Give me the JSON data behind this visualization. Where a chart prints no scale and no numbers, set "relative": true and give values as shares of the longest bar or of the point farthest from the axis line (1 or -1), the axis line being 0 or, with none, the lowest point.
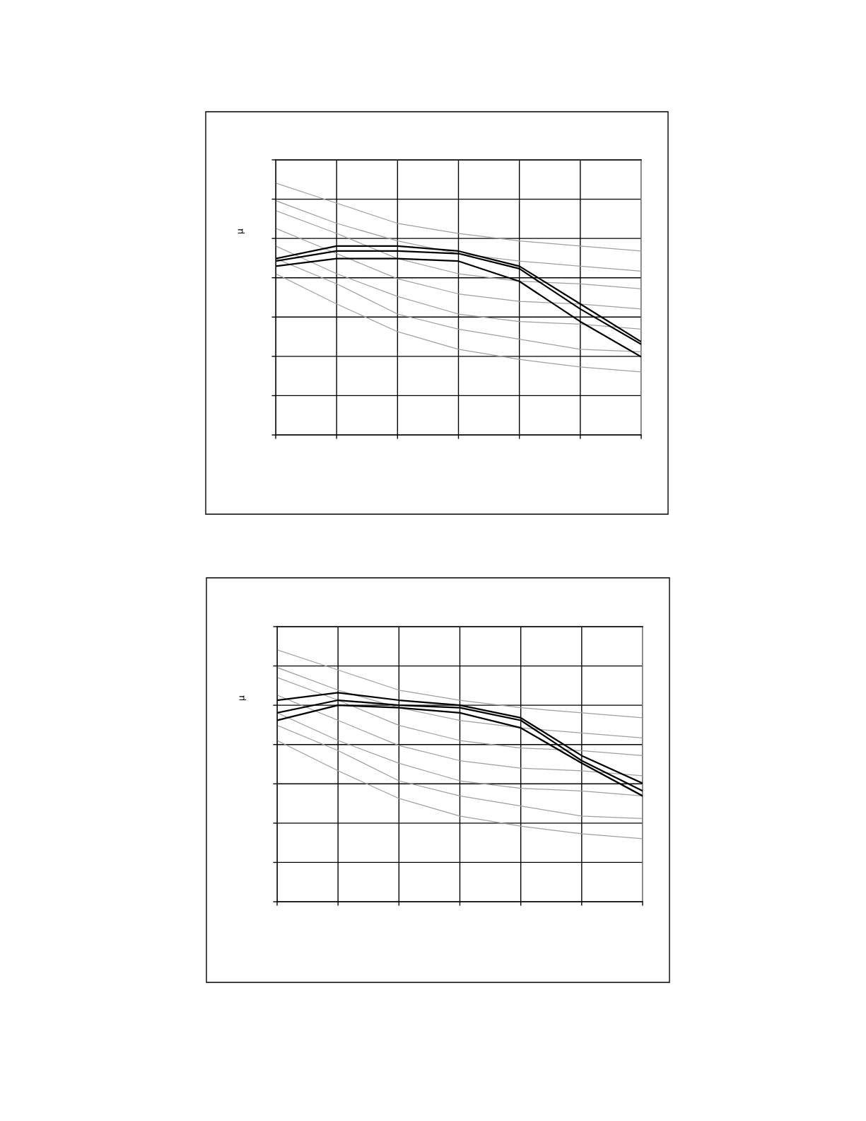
{
  "chart_data": [
    {
      "type": "line",
      "ylabel": "μ",
      "relative": true,
      "grid": true,
      "categories": [
        null,
        null,
        null,
        null,
        null,
        null,
        null
      ],
      "series": [
        {
          "color": "#a0a0a0",
          "values": [
            1.0,
            0.92,
            0.84,
            0.8,
            0.77,
            0.75,
            0.73
          ]
        },
        {
          "color": "#a0a0a0",
          "values": [
            0.93,
            0.84,
            0.77,
            0.72,
            0.69,
            0.67,
            0.65
          ]
        },
        {
          "color": "#a0a0a0",
          "values": [
            0.89,
            0.8,
            0.7,
            0.64,
            0.61,
            0.6,
            0.58
          ]
        },
        {
          "color": "#a0a0a0",
          "values": [
            0.82,
            0.72,
            0.62,
            0.56,
            0.53,
            0.52,
            0.5
          ]
        },
        {
          "color": "#a0a0a0",
          "values": [
            0.75,
            0.64,
            0.55,
            0.48,
            0.45,
            0.44,
            0.42
          ]
        },
        {
          "color": "#a0a0a0",
          "values": [
            0.7,
            0.6,
            0.48,
            0.42,
            0.38,
            0.34,
            0.33
          ]
        },
        {
          "color": "#a0a0a0",
          "values": [
            0.64,
            0.52,
            0.41,
            0.34,
            0.3,
            0.27,
            0.25
          ]
        },
        {
          "color": "#000000",
          "values": [
            0.7,
            0.75,
            0.75,
            0.73,
            0.67,
            0.52,
            0.37
          ]
        },
        {
          "color": "#000000",
          "values": [
            0.69,
            0.73,
            0.73,
            0.72,
            0.66,
            0.5,
            0.36
          ]
        },
        {
          "color": "#000000",
          "values": [
            0.67,
            0.7,
            0.7,
            0.69,
            0.61,
            0.45,
            0.31
          ]
        }
      ]
    },
    {
      "type": "line",
      "ylabel": "μ",
      "relative": true,
      "grid": true,
      "categories": [
        null,
        null,
        null,
        null,
        null,
        null,
        null
      ],
      "series": [
        {
          "color": "#a0a0a0",
          "values": [
            1.0,
            0.92,
            0.84,
            0.8,
            0.77,
            0.75,
            0.73
          ]
        },
        {
          "color": "#a0a0a0",
          "values": [
            0.93,
            0.84,
            0.77,
            0.72,
            0.69,
            0.67,
            0.65
          ]
        },
        {
          "color": "#a0a0a0",
          "values": [
            0.89,
            0.8,
            0.7,
            0.64,
            0.61,
            0.6,
            0.58
          ]
        },
        {
          "color": "#a0a0a0",
          "values": [
            0.82,
            0.72,
            0.62,
            0.56,
            0.53,
            0.52,
            0.5
          ]
        },
        {
          "color": "#a0a0a0",
          "values": [
            0.75,
            0.64,
            0.55,
            0.48,
            0.45,
            0.44,
            0.42
          ]
        },
        {
          "color": "#a0a0a0",
          "values": [
            0.7,
            0.6,
            0.48,
            0.42,
            0.38,
            0.34,
            0.33
          ]
        },
        {
          "color": "#a0a0a0",
          "values": [
            0.64,
            0.52,
            0.41,
            0.34,
            0.3,
            0.27,
            0.25
          ]
        },
        {
          "color": "#000000",
          "values": [
            0.8,
            0.83,
            0.8,
            0.78,
            0.73,
            0.58,
            0.47
          ]
        },
        {
          "color": "#000000",
          "values": [
            0.75,
            0.8,
            0.78,
            0.77,
            0.72,
            0.56,
            0.44
          ]
        },
        {
          "color": "#000000",
          "values": [
            0.72,
            0.78,
            0.77,
            0.75,
            0.69,
            0.55,
            0.42
          ]
        }
      ]
    }
  ]
}
